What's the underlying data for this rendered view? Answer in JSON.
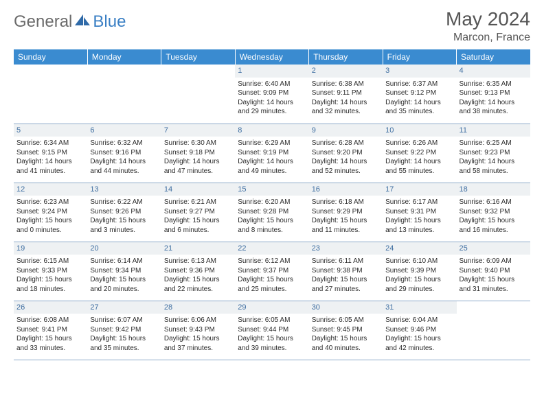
{
  "brand": {
    "part1": "General",
    "part2": "Blue"
  },
  "title": "May 2024",
  "location": "Marcon, France",
  "day_headers": [
    "Sunday",
    "Monday",
    "Tuesday",
    "Wednesday",
    "Thursday",
    "Friday",
    "Saturday"
  ],
  "colors": {
    "header_bg": "#3a8bd0",
    "header_text": "#ffffff",
    "daynum_bg": "#eef1f3",
    "daynum_text": "#3d6da0",
    "row_border": "#8aa8c8",
    "logo_gray": "#6b6b6b",
    "logo_blue": "#3a7fc4"
  },
  "weeks": [
    [
      {
        "n": "",
        "sr": "",
        "ss": "",
        "dl": ""
      },
      {
        "n": "",
        "sr": "",
        "ss": "",
        "dl": ""
      },
      {
        "n": "",
        "sr": "",
        "ss": "",
        "dl": ""
      },
      {
        "n": "1",
        "sr": "Sunrise: 6:40 AM",
        "ss": "Sunset: 9:09 PM",
        "dl": "Daylight: 14 hours and 29 minutes."
      },
      {
        "n": "2",
        "sr": "Sunrise: 6:38 AM",
        "ss": "Sunset: 9:11 PM",
        "dl": "Daylight: 14 hours and 32 minutes."
      },
      {
        "n": "3",
        "sr": "Sunrise: 6:37 AM",
        "ss": "Sunset: 9:12 PM",
        "dl": "Daylight: 14 hours and 35 minutes."
      },
      {
        "n": "4",
        "sr": "Sunrise: 6:35 AM",
        "ss": "Sunset: 9:13 PM",
        "dl": "Daylight: 14 hours and 38 minutes."
      }
    ],
    [
      {
        "n": "5",
        "sr": "Sunrise: 6:34 AM",
        "ss": "Sunset: 9:15 PM",
        "dl": "Daylight: 14 hours and 41 minutes."
      },
      {
        "n": "6",
        "sr": "Sunrise: 6:32 AM",
        "ss": "Sunset: 9:16 PM",
        "dl": "Daylight: 14 hours and 44 minutes."
      },
      {
        "n": "7",
        "sr": "Sunrise: 6:30 AM",
        "ss": "Sunset: 9:18 PM",
        "dl": "Daylight: 14 hours and 47 minutes."
      },
      {
        "n": "8",
        "sr": "Sunrise: 6:29 AM",
        "ss": "Sunset: 9:19 PM",
        "dl": "Daylight: 14 hours and 49 minutes."
      },
      {
        "n": "9",
        "sr": "Sunrise: 6:28 AM",
        "ss": "Sunset: 9:20 PM",
        "dl": "Daylight: 14 hours and 52 minutes."
      },
      {
        "n": "10",
        "sr": "Sunrise: 6:26 AM",
        "ss": "Sunset: 9:22 PM",
        "dl": "Daylight: 14 hours and 55 minutes."
      },
      {
        "n": "11",
        "sr": "Sunrise: 6:25 AM",
        "ss": "Sunset: 9:23 PM",
        "dl": "Daylight: 14 hours and 58 minutes."
      }
    ],
    [
      {
        "n": "12",
        "sr": "Sunrise: 6:23 AM",
        "ss": "Sunset: 9:24 PM",
        "dl": "Daylight: 15 hours and 0 minutes."
      },
      {
        "n": "13",
        "sr": "Sunrise: 6:22 AM",
        "ss": "Sunset: 9:26 PM",
        "dl": "Daylight: 15 hours and 3 minutes."
      },
      {
        "n": "14",
        "sr": "Sunrise: 6:21 AM",
        "ss": "Sunset: 9:27 PM",
        "dl": "Daylight: 15 hours and 6 minutes."
      },
      {
        "n": "15",
        "sr": "Sunrise: 6:20 AM",
        "ss": "Sunset: 9:28 PM",
        "dl": "Daylight: 15 hours and 8 minutes."
      },
      {
        "n": "16",
        "sr": "Sunrise: 6:18 AM",
        "ss": "Sunset: 9:29 PM",
        "dl": "Daylight: 15 hours and 11 minutes."
      },
      {
        "n": "17",
        "sr": "Sunrise: 6:17 AM",
        "ss": "Sunset: 9:31 PM",
        "dl": "Daylight: 15 hours and 13 minutes."
      },
      {
        "n": "18",
        "sr": "Sunrise: 6:16 AM",
        "ss": "Sunset: 9:32 PM",
        "dl": "Daylight: 15 hours and 16 minutes."
      }
    ],
    [
      {
        "n": "19",
        "sr": "Sunrise: 6:15 AM",
        "ss": "Sunset: 9:33 PM",
        "dl": "Daylight: 15 hours and 18 minutes."
      },
      {
        "n": "20",
        "sr": "Sunrise: 6:14 AM",
        "ss": "Sunset: 9:34 PM",
        "dl": "Daylight: 15 hours and 20 minutes."
      },
      {
        "n": "21",
        "sr": "Sunrise: 6:13 AM",
        "ss": "Sunset: 9:36 PM",
        "dl": "Daylight: 15 hours and 22 minutes."
      },
      {
        "n": "22",
        "sr": "Sunrise: 6:12 AM",
        "ss": "Sunset: 9:37 PM",
        "dl": "Daylight: 15 hours and 25 minutes."
      },
      {
        "n": "23",
        "sr": "Sunrise: 6:11 AM",
        "ss": "Sunset: 9:38 PM",
        "dl": "Daylight: 15 hours and 27 minutes."
      },
      {
        "n": "24",
        "sr": "Sunrise: 6:10 AM",
        "ss": "Sunset: 9:39 PM",
        "dl": "Daylight: 15 hours and 29 minutes."
      },
      {
        "n": "25",
        "sr": "Sunrise: 6:09 AM",
        "ss": "Sunset: 9:40 PM",
        "dl": "Daylight: 15 hours and 31 minutes."
      }
    ],
    [
      {
        "n": "26",
        "sr": "Sunrise: 6:08 AM",
        "ss": "Sunset: 9:41 PM",
        "dl": "Daylight: 15 hours and 33 minutes."
      },
      {
        "n": "27",
        "sr": "Sunrise: 6:07 AM",
        "ss": "Sunset: 9:42 PM",
        "dl": "Daylight: 15 hours and 35 minutes."
      },
      {
        "n": "28",
        "sr": "Sunrise: 6:06 AM",
        "ss": "Sunset: 9:43 PM",
        "dl": "Daylight: 15 hours and 37 minutes."
      },
      {
        "n": "29",
        "sr": "Sunrise: 6:05 AM",
        "ss": "Sunset: 9:44 PM",
        "dl": "Daylight: 15 hours and 39 minutes."
      },
      {
        "n": "30",
        "sr": "Sunrise: 6:05 AM",
        "ss": "Sunset: 9:45 PM",
        "dl": "Daylight: 15 hours and 40 minutes."
      },
      {
        "n": "31",
        "sr": "Sunrise: 6:04 AM",
        "ss": "Sunset: 9:46 PM",
        "dl": "Daylight: 15 hours and 42 minutes."
      },
      {
        "n": "",
        "sr": "",
        "ss": "",
        "dl": ""
      }
    ]
  ]
}
